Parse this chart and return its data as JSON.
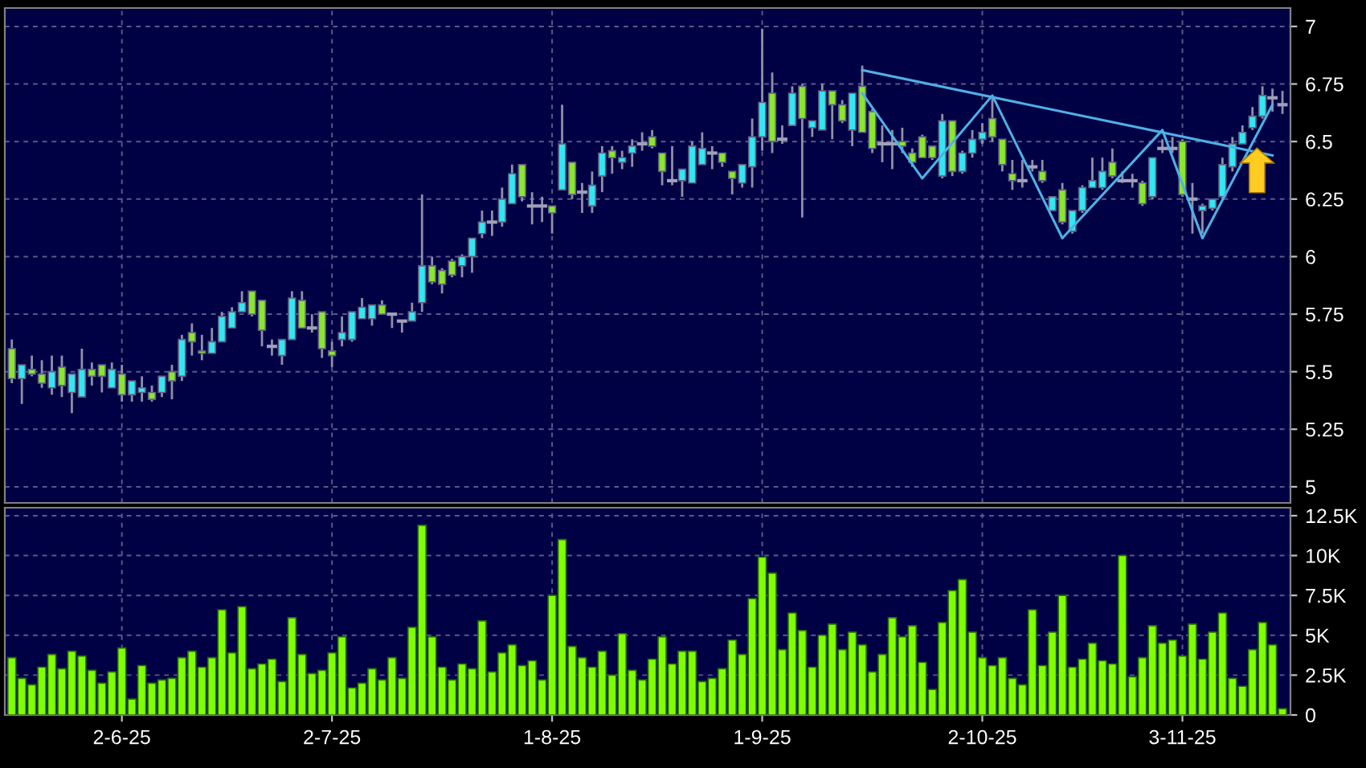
{
  "chart_data": [
    {
      "type": "candlestick",
      "tick_labels": "y",
      "grid": true,
      "categories": [
        null,
        null,
        null,
        null,
        null,
        null,
        null,
        null,
        null,
        null,
        null,
        null,
        null,
        null,
        null,
        null,
        null,
        null,
        null,
        null,
        null,
        null,
        null,
        null,
        null,
        null,
        null,
        null,
        null,
        null,
        null,
        null,
        null,
        null,
        null,
        null,
        null,
        null,
        null,
        null,
        null,
        null,
        null,
        null,
        null,
        null,
        null,
        null,
        null,
        null,
        null,
        null,
        null,
        null,
        null,
        null,
        null,
        null,
        null,
        null,
        null,
        null,
        null,
        null,
        null,
        null,
        null,
        null,
        null,
        null,
        null,
        null,
        null,
        null,
        null,
        null,
        null,
        null,
        null,
        null,
        null,
        null,
        null,
        null,
        null,
        null,
        null,
        null,
        null,
        null,
        null,
        null,
        null,
        null,
        null,
        null,
        null,
        null,
        null,
        null,
        null,
        null,
        null,
        null,
        null,
        null,
        null,
        null,
        null,
        null,
        null,
        null,
        null,
        null,
        null,
        null,
        null,
        null,
        null,
        null,
        null,
        null,
        null,
        null,
        null,
        null,
        null,
        null
      ],
      "ylim": [
        4.93,
        7.08
      ],
      "yticks": [
        5,
        5.25,
        5.5,
        5.75,
        6,
        6.25,
        6.5,
        6.75,
        7
      ],
      "series": [
        {
          "type": "candlestick",
          "ohlc": [
            [
              5.6,
              5.64,
              5.45,
              5.47
            ],
            [
              5.47,
              5.53,
              5.36,
              5.53
            ],
            [
              5.51,
              5.57,
              5.48,
              5.49
            ],
            [
              5.49,
              5.55,
              5.43,
              5.45
            ],
            [
              5.43,
              5.57,
              5.4,
              5.5
            ],
            [
              5.52,
              5.57,
              5.39,
              5.44
            ],
            [
              5.41,
              5.49,
              5.32,
              5.49
            ],
            [
              5.39,
              5.6,
              5.39,
              5.51
            ],
            [
              5.51,
              5.54,
              5.44,
              5.48
            ],
            [
              5.53,
              5.53,
              5.41,
              5.48
            ],
            [
              5.43,
              5.54,
              5.43,
              5.51
            ],
            [
              5.49,
              5.53,
              5.37,
              5.4
            ],
            [
              5.4,
              5.46,
              5.37,
              5.46
            ],
            [
              5.41,
              5.48,
              5.37,
              5.43
            ],
            [
              5.41,
              5.44,
              5.37,
              5.38
            ],
            [
              5.41,
              5.48,
              5.39,
              5.48
            ],
            [
              5.5,
              5.53,
              5.38,
              5.46
            ],
            [
              5.48,
              5.66,
              5.46,
              5.64
            ],
            [
              5.67,
              5.71,
              5.57,
              5.63
            ],
            [
              5.59,
              5.66,
              5.55,
              5.58
            ],
            [
              5.58,
              5.69,
              5.58,
              5.63
            ],
            [
              5.63,
              5.76,
              5.63,
              5.74
            ],
            [
              5.69,
              5.78,
              5.69,
              5.76
            ],
            [
              5.76,
              5.85,
              5.76,
              5.8
            ],
            [
              5.85,
              5.85,
              5.74,
              5.75
            ],
            [
              5.81,
              5.81,
              5.61,
              5.68
            ],
            [
              5.61,
              5.64,
              5.57,
              5.61
            ],
            [
              5.57,
              5.64,
              5.53,
              5.64
            ],
            [
              5.64,
              5.85,
              5.64,
              5.82
            ],
            [
              5.81,
              5.85,
              5.69,
              5.69
            ],
            [
              5.69,
              5.75,
              5.67,
              5.69
            ],
            [
              5.76,
              5.76,
              5.56,
              5.6
            ],
            [
              5.59,
              5.63,
              5.52,
              5.57
            ],
            [
              5.64,
              5.74,
              5.61,
              5.67
            ],
            [
              5.64,
              5.76,
              5.63,
              5.76
            ],
            [
              5.73,
              5.82,
              5.73,
              5.78
            ],
            [
              5.73,
              5.79,
              5.7,
              5.79
            ],
            [
              5.79,
              5.81,
              5.75,
              5.75
            ],
            [
              5.75,
              5.75,
              5.69,
              5.75
            ],
            [
              5.72,
              5.72,
              5.67,
              5.72
            ],
            [
              5.72,
              5.8,
              5.72,
              5.76
            ],
            [
              5.8,
              6.27,
              5.76,
              5.96
            ],
            [
              5.96,
              6.0,
              5.88,
              5.89
            ],
            [
              5.94,
              5.95,
              5.84,
              5.88
            ],
            [
              5.98,
              5.99,
              5.91,
              5.92
            ],
            [
              5.96,
              6.01,
              5.91,
              6.0
            ],
            [
              6.0,
              6.08,
              5.93,
              6.08
            ],
            [
              6.1,
              6.2,
              6.08,
              6.15
            ],
            [
              6.15,
              6.2,
              6.09,
              6.15
            ],
            [
              6.15,
              6.3,
              6.13,
              6.25
            ],
            [
              6.23,
              6.4,
              6.23,
              6.36
            ],
            [
              6.4,
              6.4,
              6.24,
              6.26
            ],
            [
              6.22,
              6.28,
              6.14,
              6.22
            ],
            [
              6.22,
              6.26,
              6.15,
              6.22
            ],
            [
              6.22,
              6.22,
              6.1,
              6.19
            ],
            [
              6.29,
              6.66,
              6.29,
              6.49
            ],
            [
              6.41,
              6.41,
              6.25,
              6.27
            ],
            [
              6.28,
              6.32,
              6.19,
              6.28
            ],
            [
              6.22,
              6.37,
              6.19,
              6.31
            ],
            [
              6.35,
              6.48,
              6.28,
              6.45
            ],
            [
              6.46,
              6.48,
              6.36,
              6.43
            ],
            [
              6.41,
              6.46,
              6.38,
              6.43
            ],
            [
              6.45,
              6.51,
              6.39,
              6.48
            ],
            [
              6.49,
              6.54,
              6.46,
              6.49
            ],
            [
              6.52,
              6.55,
              6.47,
              6.48
            ],
            [
              6.45,
              6.45,
              6.31,
              6.37
            ],
            [
              6.33,
              6.48,
              6.31,
              6.33
            ],
            [
              6.33,
              6.38,
              6.26,
              6.38
            ],
            [
              6.32,
              6.5,
              6.32,
              6.48
            ],
            [
              6.4,
              6.54,
              6.4,
              6.47
            ],
            [
              6.45,
              6.48,
              6.38,
              6.45
            ],
            [
              6.45,
              6.45,
              6.39,
              6.41
            ],
            [
              6.37,
              6.37,
              6.27,
              6.34
            ],
            [
              6.32,
              6.4,
              6.3,
              6.4
            ],
            [
              6.39,
              6.6,
              6.3,
              6.52
            ],
            [
              6.52,
              6.99,
              6.46,
              6.67
            ],
            [
              6.71,
              6.8,
              6.45,
              6.5
            ],
            [
              6.51,
              6.57,
              6.49,
              6.51
            ],
            [
              6.57,
              6.74,
              6.57,
              6.71
            ],
            [
              6.74,
              6.75,
              6.17,
              6.6
            ],
            [
              6.56,
              6.59,
              6.52,
              6.59
            ],
            [
              6.55,
              6.75,
              6.55,
              6.72
            ],
            [
              6.72,
              6.72,
              6.51,
              6.66
            ],
            [
              6.66,
              6.68,
              6.58,
              6.59
            ],
            [
              6.55,
              6.71,
              6.48,
              6.71
            ],
            [
              6.74,
              6.83,
              6.54,
              6.54
            ],
            [
              6.63,
              6.64,
              6.45,
              6.47
            ],
            [
              6.49,
              6.57,
              6.41,
              6.49
            ],
            [
              6.49,
              6.55,
              6.38,
              6.49
            ],
            [
              6.5,
              6.56,
              6.45,
              6.48
            ],
            [
              6.45,
              6.47,
              6.39,
              6.41
            ],
            [
              6.52,
              6.53,
              6.43,
              6.43
            ],
            [
              6.48,
              6.48,
              6.42,
              6.43
            ],
            [
              6.35,
              6.62,
              6.34,
              6.59
            ],
            [
              6.59,
              6.59,
              6.35,
              6.37
            ],
            [
              6.37,
              6.46,
              6.36,
              6.45
            ],
            [
              6.45,
              6.55,
              6.43,
              6.51
            ],
            [
              6.51,
              6.58,
              6.49,
              6.54
            ],
            [
              6.6,
              6.7,
              6.5,
              6.52
            ],
            [
              6.51,
              6.51,
              6.37,
              6.4
            ],
            [
              6.36,
              6.42,
              6.29,
              6.33
            ],
            [
              6.33,
              6.42,
              6.3,
              6.33
            ],
            [
              6.39,
              6.42,
              6.37,
              6.39
            ],
            [
              6.37,
              6.42,
              6.32,
              6.33
            ],
            [
              6.2,
              6.26,
              6.2,
              6.26
            ],
            [
              6.29,
              6.32,
              6.14,
              6.15
            ],
            [
              6.11,
              6.2,
              6.1,
              6.2
            ],
            [
              6.2,
              6.31,
              6.19,
              6.3
            ],
            [
              6.3,
              6.43,
              6.3,
              6.33
            ],
            [
              6.3,
              6.43,
              6.29,
              6.37
            ],
            [
              6.41,
              6.47,
              6.34,
              6.35
            ],
            [
              6.33,
              6.37,
              6.32,
              6.33
            ],
            [
              6.33,
              6.36,
              6.3,
              6.33
            ],
            [
              6.32,
              6.33,
              6.22,
              6.23
            ],
            [
              6.26,
              6.43,
              6.25,
              6.43
            ],
            [
              6.47,
              6.51,
              6.45,
              6.47
            ],
            [
              6.47,
              6.52,
              6.45,
              6.47
            ],
            [
              6.5,
              6.51,
              6.26,
              6.27
            ],
            [
              6.25,
              6.32,
              6.1,
              6.25
            ],
            [
              6.2,
              6.23,
              6.1,
              6.22
            ],
            [
              6.21,
              6.25,
              6.2,
              6.25
            ],
            [
              6.26,
              6.43,
              6.25,
              6.4
            ],
            [
              6.39,
              6.52,
              6.37,
              6.49
            ],
            [
              6.49,
              6.57,
              6.49,
              6.54
            ],
            [
              6.56,
              6.65,
              6.55,
              6.61
            ],
            [
              6.61,
              6.74,
              6.6,
              6.7
            ],
            [
              6.69,
              6.73,
              6.63,
              6.69
            ],
            [
              6.66,
              6.72,
              6.62,
              6.66
            ]
          ],
          "colors": [
            "#8ae62e",
            "#33e6f2",
            "#8ae62e",
            "#8ae62e",
            "#33e6f2",
            "#8ae62e",
            "#33e6f2",
            "#33e6f2",
            "#8ae62e",
            "#8ae62e",
            "#33e6f2",
            "#8ae62e",
            "#33e6f2",
            "#33e6f2",
            "#8ae62e",
            "#33e6f2",
            "#8ae62e",
            "#33e6f2",
            "#8ae62e",
            "#8ae62e",
            "#33e6f2",
            "#33e6f2",
            "#33e6f2",
            "#33e6f2",
            "#8ae62e",
            "#8ae62e",
            "#a0a0b8",
            "#33e6f2",
            "#33e6f2",
            "#8ae62e",
            "#a0a0b8",
            "#8ae62e",
            "#8ae62e",
            "#33e6f2",
            "#33e6f2",
            "#33e6f2",
            "#33e6f2",
            "#8ae62e",
            "#a0a0b8",
            "#a0a0b8",
            "#33e6f2",
            "#33e6f2",
            "#8ae62e",
            "#8ae62e",
            "#8ae62e",
            "#33e6f2",
            "#33e6f2",
            "#33e6f2",
            "#a0a0b8",
            "#33e6f2",
            "#33e6f2",
            "#8ae62e",
            "#a0a0b8",
            "#a0a0b8",
            "#8ae62e",
            "#33e6f2",
            "#8ae62e",
            "#a0a0b8",
            "#33e6f2",
            "#33e6f2",
            "#8ae62e",
            "#33e6f2",
            "#33e6f2",
            "#a0a0b8",
            "#8ae62e",
            "#8ae62e",
            "#a0a0b8",
            "#33e6f2",
            "#33e6f2",
            "#33e6f2",
            "#a0a0b8",
            "#8ae62e",
            "#8ae62e",
            "#33e6f2",
            "#33e6f2",
            "#33e6f2",
            "#8ae62e",
            "#a0a0b8",
            "#33e6f2",
            "#8ae62e",
            "#33e6f2",
            "#33e6f2",
            "#8ae62e",
            "#8ae62e",
            "#33e6f2",
            "#8ae62e",
            "#8ae62e",
            "#a0a0b8",
            "#a0a0b8",
            "#8ae62e",
            "#8ae62e",
            "#8ae62e",
            "#8ae62e",
            "#33e6f2",
            "#8ae62e",
            "#33e6f2",
            "#33e6f2",
            "#33e6f2",
            "#8ae62e",
            "#8ae62e",
            "#8ae62e",
            "#a0a0b8",
            "#a0a0b8",
            "#8ae62e",
            "#33e6f2",
            "#8ae62e",
            "#33e6f2",
            "#33e6f2",
            "#33e6f2",
            "#33e6f2",
            "#8ae62e",
            "#a0a0b8",
            "#a0a0b8",
            "#8ae62e",
            "#33e6f2",
            "#a0a0b8",
            "#a0a0b8",
            "#8ae62e",
            "#a0a0b8",
            "#33e6f2",
            "#33e6f2",
            "#33e6f2",
            "#33e6f2",
            "#33e6f2",
            "#33e6f2",
            "#33e6f2",
            "#a0a0b8",
            "#a0a0b8"
          ]
        },
        {
          "type": "line",
          "color": "#4fb0e6",
          "values": [
            null,
            null,
            null,
            null,
            null,
            null,
            null,
            null,
            null,
            null,
            null,
            null,
            null,
            null,
            null,
            null,
            null,
            null,
            null,
            null,
            null,
            null,
            null,
            null,
            null,
            null,
            null,
            null,
            null,
            null,
            null,
            null,
            null,
            null,
            null,
            null,
            null,
            null,
            null,
            null,
            null,
            null,
            null,
            null,
            null,
            null,
            null,
            null,
            null,
            null,
            null,
            null,
            null,
            null,
            null,
            null,
            null,
            null,
            null,
            null,
            null,
            null,
            null,
            null,
            null,
            null,
            null,
            null,
            null,
            null,
            null,
            null,
            null,
            null,
            null,
            null,
            null,
            null,
            null,
            null,
            null,
            null,
            null,
            null,
            null,
            6.81,
            null,
            null,
            null,
            null,
            null,
            null,
            null,
            null,
            null,
            null,
            null,
            null,
            null,
            null,
            null,
            null,
            null,
            null,
            null,
            null,
            null,
            null,
            null,
            null,
            null,
            null,
            null,
            null,
            null,
            null,
            null,
            null,
            null,
            null,
            null,
            null,
            null,
            null,
            null,
            null,
            6.44,
            null
          ]
        },
        {
          "type": "line",
          "color": "#4fb0e6",
          "values": [
            null,
            null,
            null,
            null,
            null,
            null,
            null,
            null,
            null,
            null,
            null,
            null,
            null,
            null,
            null,
            null,
            null,
            null,
            null,
            null,
            null,
            null,
            null,
            null,
            null,
            null,
            null,
            null,
            null,
            null,
            null,
            null,
            null,
            null,
            null,
            null,
            null,
            null,
            null,
            null,
            null,
            null,
            null,
            null,
            null,
            null,
            null,
            null,
            null,
            null,
            null,
            null,
            null,
            null,
            null,
            null,
            null,
            null,
            null,
            null,
            null,
            null,
            null,
            null,
            null,
            null,
            null,
            null,
            null,
            null,
            null,
            null,
            null,
            null,
            null,
            null,
            null,
            null,
            null,
            null,
            null,
            null,
            null,
            null,
            null,
            6.71,
            null,
            null,
            null,
            null,
            null,
            6.34,
            null,
            null,
            null,
            null,
            null,
            null,
            6.7,
            null,
            null,
            null,
            null,
            null,
            null,
            6.08,
            null,
            null,
            null,
            null,
            null,
            null,
            null,
            null,
            null,
            6.55,
            null,
            null,
            null,
            6.08,
            null,
            null,
            null,
            null,
            null,
            null,
            6.66,
            null
          ]
        }
      ]
    },
    {
      "type": "bar",
      "grid": true,
      "color": "#7fff00",
      "categories": [
        null,
        null,
        null,
        null,
        null,
        null,
        null,
        null,
        null,
        null,
        null,
        "2-6-25",
        null,
        null,
        null,
        null,
        null,
        null,
        null,
        null,
        null,
        null,
        null,
        null,
        null,
        null,
        null,
        null,
        null,
        null,
        null,
        null,
        "2-7-25",
        null,
        null,
        null,
        null,
        null,
        null,
        null,
        null,
        null,
        null,
        null,
        null,
        null,
        null,
        null,
        null,
        null,
        null,
        null,
        null,
        null,
        "1-8-25",
        null,
        null,
        null,
        null,
        null,
        null,
        null,
        null,
        null,
        null,
        null,
        null,
        null,
        null,
        null,
        null,
        null,
        null,
        null,
        null,
        "1-9-25",
        null,
        null,
        null,
        null,
        null,
        null,
        null,
        null,
        null,
        null,
        null,
        null,
        null,
        null,
        null,
        null,
        null,
        null,
        null,
        null,
        null,
        "2-10-25",
        null,
        null,
        null,
        null,
        null,
        null,
        null,
        null,
        null,
        null,
        null,
        null,
        null,
        null,
        null,
        null,
        null,
        null,
        null,
        "3-11-25",
        null,
        null,
        null,
        null,
        null,
        null,
        null,
        null,
        null,
        null
      ],
      "values": [
        3.6,
        2.3,
        1.9,
        3.0,
        3.8,
        2.9,
        4.0,
        3.7,
        2.8,
        2.0,
        2.7,
        4.2,
        1.0,
        3.1,
        2.0,
        2.2,
        2.3,
        3.6,
        4.0,
        3.0,
        3.6,
        6.6,
        3.9,
        6.8,
        2.9,
        3.2,
        3.5,
        2.1,
        6.1,
        3.8,
        2.6,
        2.8,
        3.9,
        4.9,
        1.7,
        2.0,
        2.9,
        2.2,
        3.6,
        2.3,
        5.5,
        11.9,
        4.9,
        3.0,
        2.2,
        3.2,
        2.9,
        5.9,
        2.7,
        3.9,
        4.4,
        3.1,
        3.4,
        2.2,
        7.5,
        11.0,
        4.3,
        3.6,
        3.0,
        4.0,
        2.5,
        5.1,
        2.8,
        2.2,
        3.5,
        4.9,
        3.2,
        4.0,
        4.0,
        2.1,
        2.3,
        2.9,
        4.7,
        3.8,
        7.3,
        9.9,
        8.9,
        4.1,
        6.4,
        5.3,
        3.0,
        5.0,
        5.7,
        4.1,
        5.2,
        4.4,
        2.7,
        3.8,
        6.1,
        4.9,
        5.6,
        3.3,
        1.6,
        5.8,
        7.8,
        8.5,
        5.2,
        3.6,
        3.1,
        3.6,
        2.3,
        1.9,
        6.6,
        3.1,
        5.2,
        7.5,
        3.0,
        3.5,
        4.5,
        3.4,
        3.2,
        10.0,
        2.4,
        3.6,
        5.6,
        4.5,
        4.7,
        3.7,
        5.7,
        3.5,
        5.2,
        6.4,
        2.3,
        1.8,
        4.1,
        5.8,
        4.4,
        0.4
      ],
      "ylim": [
        0,
        13.0
      ],
      "yticks": [
        {
          "value": 0,
          "label": "0"
        },
        {
          "value": 2.5,
          "label": "2.5K"
        },
        {
          "value": 5,
          "label": "5K"
        },
        {
          "value": 7.5,
          "label": "7.5K"
        },
        {
          "value": 10,
          "label": "10K"
        },
        {
          "value": 12.5,
          "label": "12.5K"
        }
      ]
    }
  ]
}
